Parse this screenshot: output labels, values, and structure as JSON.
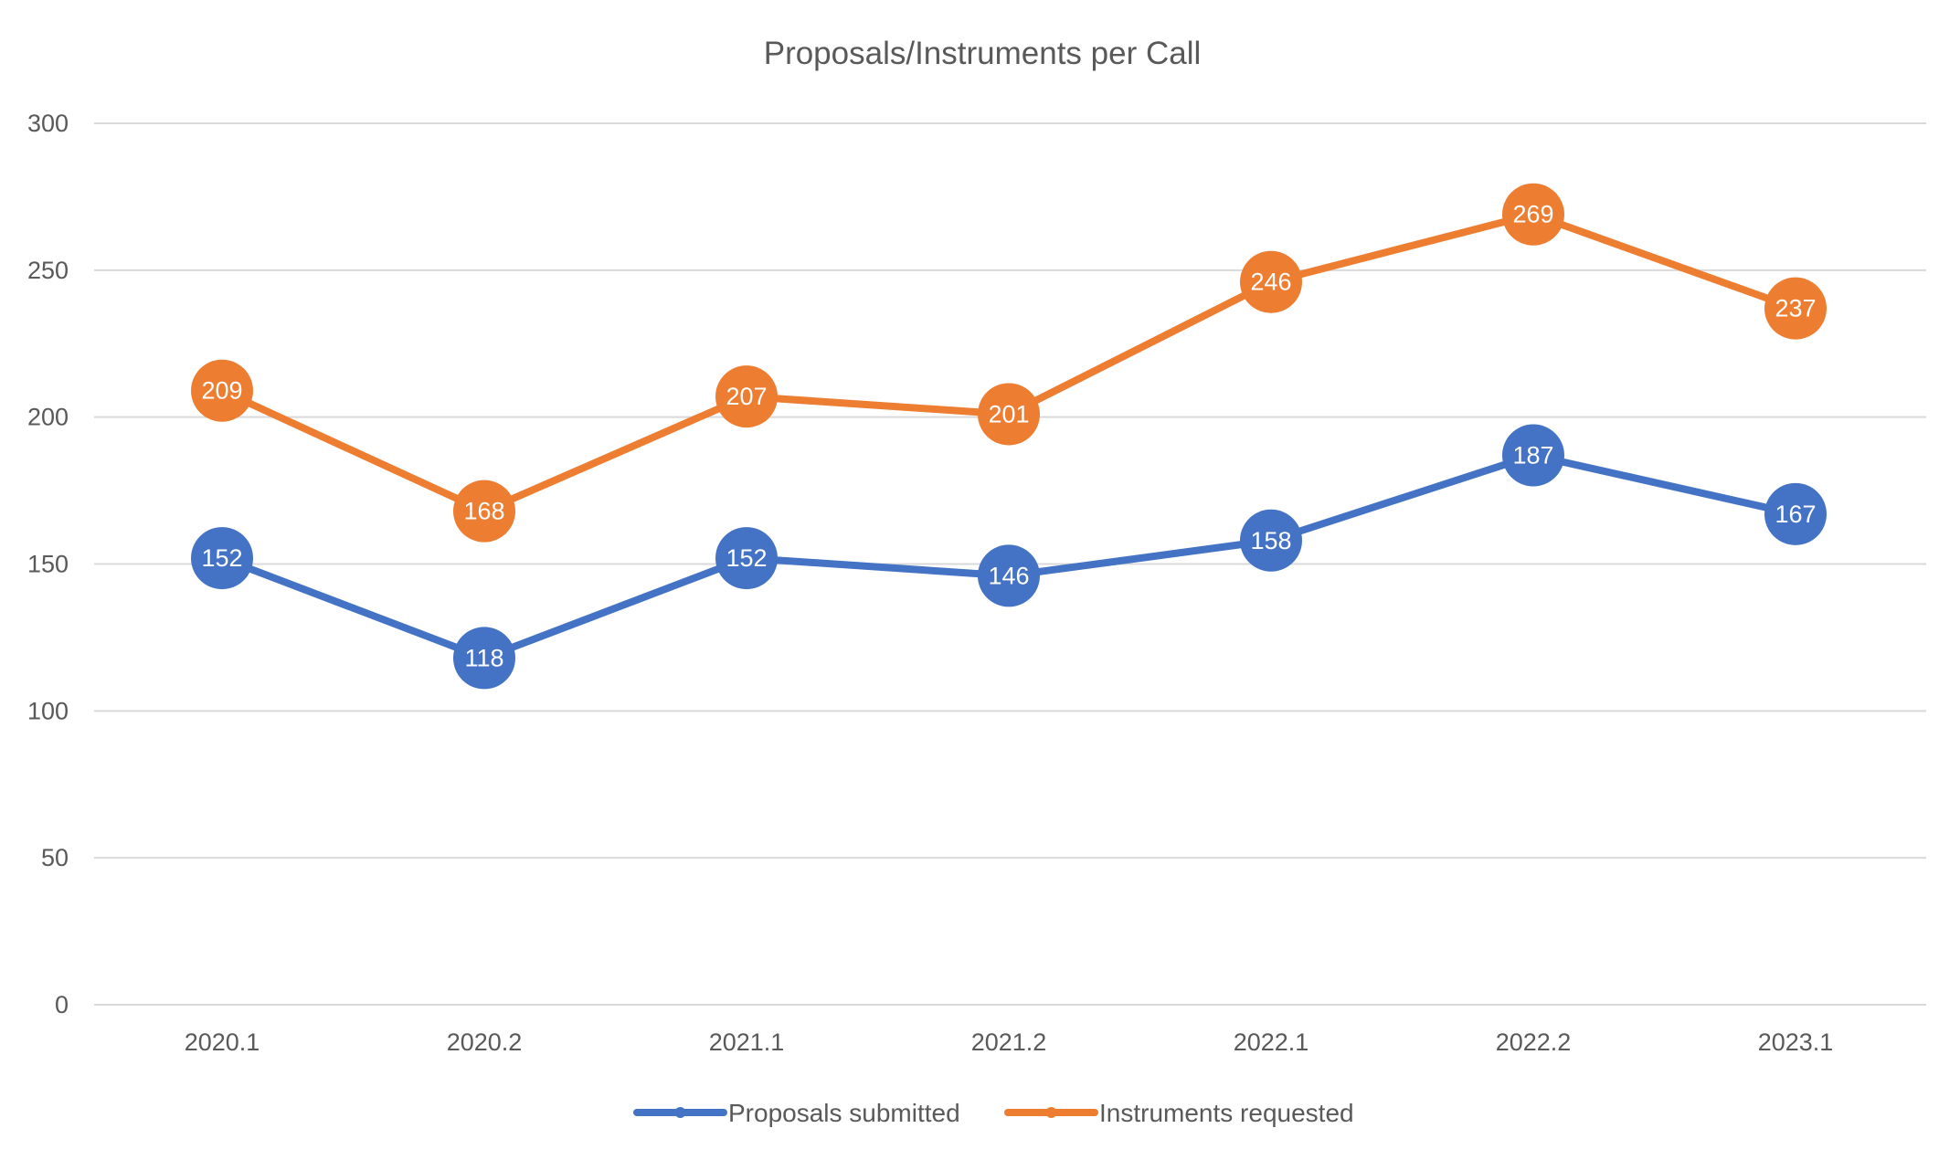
{
  "chart_data": {
    "type": "line",
    "title": "Proposals/Instruments per Call",
    "xlabel": "",
    "ylabel": "",
    "categories": [
      "2020.1",
      "2020.2",
      "2021.1",
      "2021.2",
      "2022.1",
      "2022.2",
      "2023.1"
    ],
    "ylim": [
      0,
      300
    ],
    "yticks": [
      0,
      50,
      100,
      150,
      200,
      250,
      300
    ],
    "grid": true,
    "legend_position": "bottom",
    "data_labels": true,
    "series": [
      {
        "name": "Proposals submitted",
        "color": "#4472C4",
        "values": [
          152,
          118,
          152,
          146,
          158,
          187,
          167
        ]
      },
      {
        "name": "Instruments requested",
        "color": "#ED7D31",
        "values": [
          209,
          168,
          207,
          201,
          246,
          269,
          237
        ]
      }
    ]
  },
  "style": {
    "gridline_color": "#D9D9D9",
    "axis_text_color": "#595959"
  }
}
